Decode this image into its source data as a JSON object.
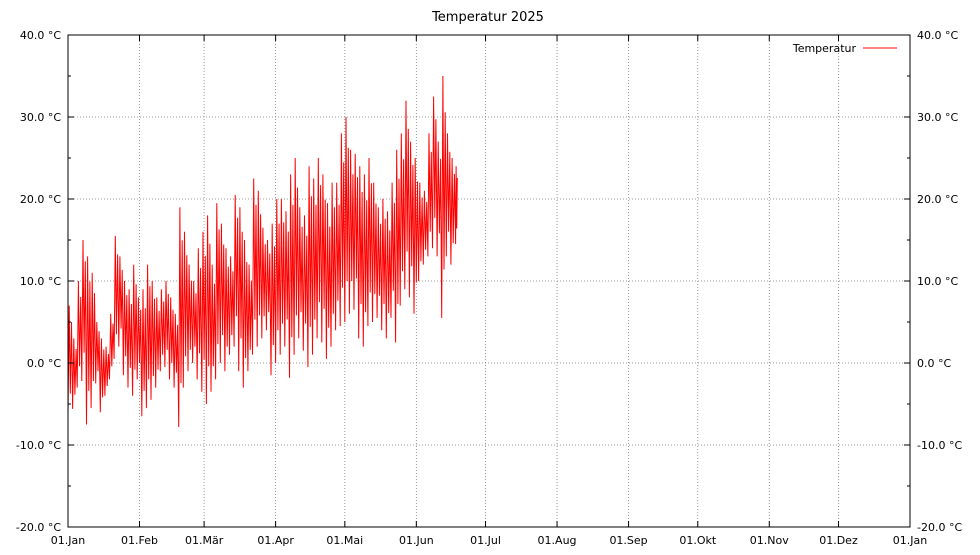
{
  "chart_data": {
    "type": "line",
    "title": "Temperatur 2025",
    "xlabel": "",
    "ylabel": "",
    "ylim": [
      -20,
      40
    ],
    "yticks": [
      -20,
      -10,
      0,
      10,
      20,
      30,
      40
    ],
    "ytick_labels": [
      "-20.0 °C",
      "-10.0 °C",
      "0.0 °C",
      "10.0 °C",
      "20.0 °C",
      "30.0 °C",
      "40.0 °C"
    ],
    "xlim": [
      "2025-01-01",
      "2026-01-01"
    ],
    "xtick_labels": [
      "01.Jan",
      "01.Feb",
      "01.Mär",
      "01.Apr",
      "01.Mai",
      "01.Jun",
      "01.Jul",
      "01.Aug",
      "01.Sep",
      "01.Okt",
      "01.Nov",
      "01.Dez",
      "01.Jan"
    ],
    "xtick_dates": [
      "2025-01-01",
      "2025-02-01",
      "2025-03-01",
      "2025-04-01",
      "2025-05-01",
      "2025-06-01",
      "2025-07-01",
      "2025-08-01",
      "2025-09-01",
      "2025-10-01",
      "2025-11-01",
      "2025-12-01",
      "2026-01-01"
    ],
    "grid": true,
    "legend_position": "top-right",
    "series": [
      {
        "name": "Temperatur",
        "color": "#ff0000",
        "x": [
          "2025-01-01",
          "2025-01-03",
          "2025-01-05",
          "2025-01-07",
          "2025-01-09",
          "2025-01-11",
          "2025-01-13",
          "2025-01-15",
          "2025-01-17",
          "2025-01-19",
          "2025-01-21",
          "2025-01-23",
          "2025-01-25",
          "2025-01-27",
          "2025-01-29",
          "2025-01-31",
          "2025-02-02",
          "2025-02-04",
          "2025-02-06",
          "2025-02-08",
          "2025-02-10",
          "2025-02-12",
          "2025-02-14",
          "2025-02-16",
          "2025-02-18",
          "2025-02-20",
          "2025-02-22",
          "2025-02-24",
          "2025-02-26",
          "2025-02-28",
          "2025-03-02",
          "2025-03-04",
          "2025-03-06",
          "2025-03-08",
          "2025-03-10",
          "2025-03-12",
          "2025-03-14",
          "2025-03-16",
          "2025-03-18",
          "2025-03-20",
          "2025-03-22",
          "2025-03-24",
          "2025-03-26",
          "2025-03-28",
          "2025-03-30",
          "2025-04-01",
          "2025-04-03",
          "2025-04-05",
          "2025-04-07",
          "2025-04-09",
          "2025-04-11",
          "2025-04-13",
          "2025-04-15",
          "2025-04-17",
          "2025-04-19",
          "2025-04-21",
          "2025-04-23",
          "2025-04-25",
          "2025-04-27",
          "2025-04-29",
          "2025-05-01",
          "2025-05-03",
          "2025-05-05",
          "2025-05-07",
          "2025-05-09",
          "2025-05-11",
          "2025-05-13",
          "2025-05-15",
          "2025-05-17",
          "2025-05-19",
          "2025-05-21",
          "2025-05-23",
          "2025-05-25",
          "2025-05-27",
          "2025-05-29",
          "2025-05-31",
          "2025-06-02",
          "2025-06-04",
          "2025-06-06",
          "2025-06-08",
          "2025-06-10",
          "2025-06-12",
          "2025-06-14",
          "2025-06-16",
          "2025-06-18"
        ],
        "min": [
          -6.4,
          -5.6,
          -3.0,
          -2.2,
          -7.5,
          -5.5,
          -2.5,
          -6.0,
          -4.0,
          -2.0,
          0.5,
          2.0,
          -1.5,
          -3.0,
          -4.0,
          -2.0,
          -6.5,
          -5.5,
          -4.5,
          -3.0,
          -1.0,
          -0.5,
          -2.0,
          -3.0,
          -7.8,
          -3.0,
          -1.0,
          0.0,
          -2.0,
          -3.5,
          -5.0,
          -3.5,
          -2.0,
          0.0,
          -1.0,
          1.0,
          2.0,
          -1.0,
          -3.0,
          -1.0,
          1.0,
          2.0,
          3.0,
          4.0,
          -1.5,
          0.0,
          1.0,
          2.0,
          -1.8,
          1.0,
          3.0,
          1.5,
          -0.5,
          1.0,
          3.0,
          2.5,
          0.5,
          2.0,
          4.0,
          4.5,
          5.0,
          6.0,
          6.5,
          3.0,
          2.0,
          4.5,
          5.0,
          5.5,
          4.0,
          3.0,
          5.5,
          2.5,
          7.0,
          9.0,
          8.0,
          6.0,
          10.0,
          12.0,
          13.0,
          14.0,
          13.0,
          5.5,
          13.0,
          12.0,
          14.5
        ],
        "max": [
          7.0,
          3.0,
          10.0,
          15.0,
          13.0,
          11.0,
          5.0,
          3.0,
          2.0,
          6.0,
          15.5,
          13.0,
          10.0,
          9.0,
          12.0,
          8.0,
          9.0,
          12.0,
          10.0,
          8.0,
          9.0,
          10.0,
          8.0,
          6.0,
          19.0,
          16.0,
          12.0,
          10.0,
          14.0,
          16.0,
          18.0,
          12.0,
          19.5,
          17.0,
          14.0,
          13.0,
          20.5,
          19.0,
          15.0,
          12.0,
          22.5,
          21.0,
          16.5,
          15.0,
          17.0,
          20.0,
          20.0,
          18.5,
          23.0,
          25.0,
          19.0,
          18.0,
          24.0,
          22.5,
          25.0,
          23.0,
          19.5,
          22.0,
          22.0,
          28.0,
          30.0,
          26.0,
          25.5,
          24.0,
          23.0,
          25.0,
          22.0,
          19.0,
          20.0,
          18.5,
          22.0,
          26.0,
          28.0,
          32.0,
          27.0,
          25.0,
          22.0,
          21.0,
          28.0,
          32.5,
          27.0,
          35.0,
          28.0,
          25.0,
          24.0
        ]
      }
    ]
  }
}
